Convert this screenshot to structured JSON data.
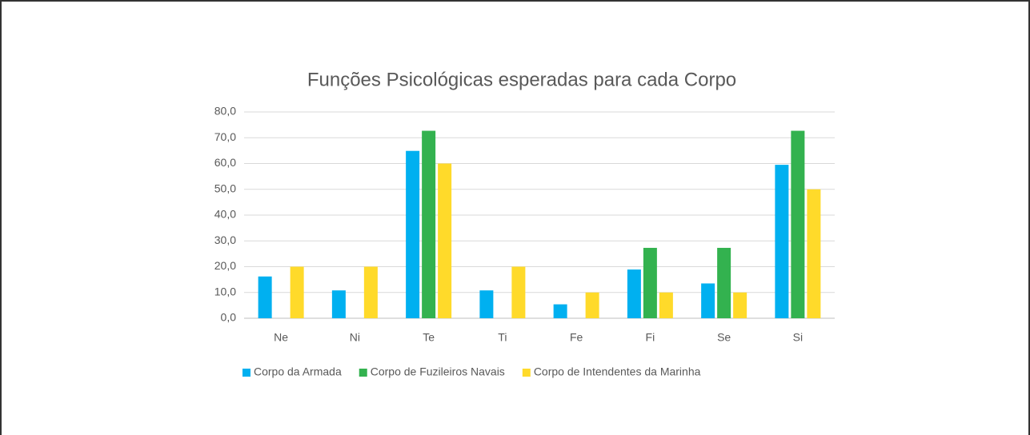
{
  "chart_data": {
    "type": "bar",
    "title": "Funções Psicológicas esperadas para cada Corpo",
    "categories": [
      "Ne",
      "Ni",
      "Te",
      "Ti",
      "Fe",
      "Fi",
      "Se",
      "Si"
    ],
    "series": [
      {
        "name": "Corpo da Armada",
        "color": "#00b0f0",
        "values": [
          16.2,
          10.8,
          64.9,
          10.8,
          5.4,
          18.9,
          13.5,
          59.5
        ]
      },
      {
        "name": "Corpo de Fuzileiros Navais",
        "color": "#33b24f",
        "values": [
          0,
          0,
          72.7,
          0,
          0,
          27.3,
          27.3,
          72.7
        ]
      },
      {
        "name": "Corpo de Intendentes da Marinha",
        "color": "#ffda2a",
        "values": [
          20,
          20,
          60,
          20,
          10,
          10,
          10,
          50
        ]
      }
    ],
    "ylim": [
      0,
      80
    ],
    "yticks": [
      {
        "value": 0,
        "label": "0,0"
      },
      {
        "value": 10,
        "label": "10,0"
      },
      {
        "value": 20,
        "label": "20,0"
      },
      {
        "value": 30,
        "label": "30,0"
      },
      {
        "value": 40,
        "label": "40,0"
      },
      {
        "value": 50,
        "label": "50,0"
      },
      {
        "value": 60,
        "label": "60,0"
      },
      {
        "value": 70,
        "label": "70,0"
      },
      {
        "value": 80,
        "label": "80,0"
      }
    ],
    "grid": true,
    "legend": "bottom"
  }
}
